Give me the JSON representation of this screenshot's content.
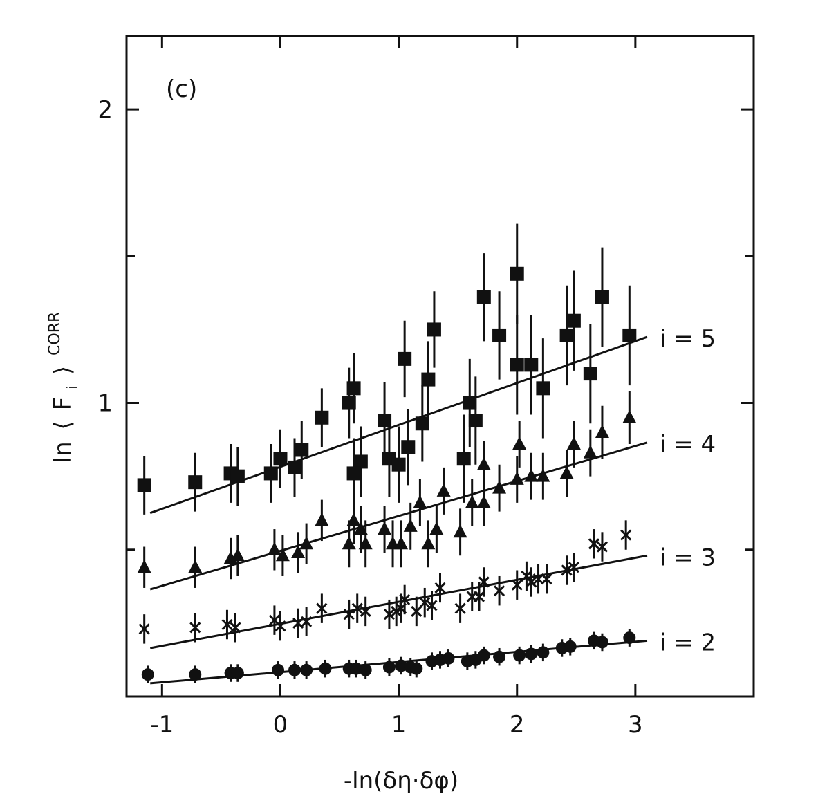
{
  "chart_data": {
    "type": "scatter",
    "panel_label": "(c)",
    "xlabel": "-ln(δη·δφ)",
    "ylabel": {
      "prefix": "ln",
      "open": "⟨",
      "base": "F",
      "sub": "i",
      "close": "⟩",
      "sup": "CORR"
    },
    "xlim": [
      -1.3,
      4.0
    ],
    "ylim": [
      0.0,
      2.25
    ],
    "x_ticks": [
      -1,
      0,
      1,
      2,
      3
    ],
    "x_tick_labels": [
      "-1",
      "0",
      "1",
      "2",
      "3"
    ],
    "y_ticks": [
      1,
      2
    ],
    "y_tick_labels": [
      "1",
      "2"
    ],
    "y_minor_ticks": [
      0.5,
      1.5
    ],
    "grid": false,
    "legend": "none",
    "series": [
      {
        "name": "i = 2",
        "marker": "circle",
        "fit": {
          "x": [
            -1.1,
            3.1
          ],
          "y": [
            0.045,
            0.19
          ]
        },
        "points": [
          [
            -1.12,
            0.075,
            0.03
          ],
          [
            -0.72,
            0.075,
            0.03
          ],
          [
            -0.42,
            0.08,
            0.03
          ],
          [
            -0.36,
            0.08,
            0.03
          ],
          [
            -0.02,
            0.09,
            0.03
          ],
          [
            0.12,
            0.09,
            0.03
          ],
          [
            0.22,
            0.09,
            0.03
          ],
          [
            0.38,
            0.095,
            0.03
          ],
          [
            0.58,
            0.095,
            0.03
          ],
          [
            0.64,
            0.095,
            0.03
          ],
          [
            0.72,
            0.09,
            0.03
          ],
          [
            0.92,
            0.1,
            0.03
          ],
          [
            1.02,
            0.105,
            0.03
          ],
          [
            1.1,
            0.1,
            0.03
          ],
          [
            1.15,
            0.095,
            0.03
          ],
          [
            1.28,
            0.12,
            0.03
          ],
          [
            1.35,
            0.125,
            0.03
          ],
          [
            1.42,
            0.13,
            0.03
          ],
          [
            1.58,
            0.12,
            0.03
          ],
          [
            1.65,
            0.125,
            0.03
          ],
          [
            1.72,
            0.14,
            0.03
          ],
          [
            1.85,
            0.135,
            0.03
          ],
          [
            2.02,
            0.14,
            0.03
          ],
          [
            2.12,
            0.145,
            0.03
          ],
          [
            2.22,
            0.15,
            0.03
          ],
          [
            2.38,
            0.165,
            0.03
          ],
          [
            2.45,
            0.17,
            0.03
          ],
          [
            2.65,
            0.19,
            0.03
          ],
          [
            2.72,
            0.185,
            0.03
          ],
          [
            2.95,
            0.2,
            0.03
          ]
        ]
      },
      {
        "name": "i = 3",
        "marker": "x",
        "fit": {
          "x": [
            -1.1,
            3.1
          ],
          "y": [
            0.165,
            0.48
          ]
        },
        "points": [
          [
            -1.15,
            0.23,
            0.05
          ],
          [
            -0.72,
            0.235,
            0.05
          ],
          [
            -0.45,
            0.245,
            0.05
          ],
          [
            -0.38,
            0.235,
            0.05
          ],
          [
            -0.05,
            0.26,
            0.05
          ],
          [
            0.0,
            0.24,
            0.05
          ],
          [
            0.15,
            0.25,
            0.05
          ],
          [
            0.22,
            0.255,
            0.05
          ],
          [
            0.35,
            0.3,
            0.05
          ],
          [
            0.58,
            0.28,
            0.05
          ],
          [
            0.65,
            0.3,
            0.05
          ],
          [
            0.72,
            0.29,
            0.05
          ],
          [
            0.92,
            0.28,
            0.05
          ],
          [
            0.98,
            0.29,
            0.05
          ],
          [
            1.02,
            0.3,
            0.05
          ],
          [
            1.05,
            0.33,
            0.05
          ],
          [
            1.15,
            0.29,
            0.05
          ],
          [
            1.22,
            0.32,
            0.05
          ],
          [
            1.28,
            0.31,
            0.05
          ],
          [
            1.35,
            0.37,
            0.05
          ],
          [
            1.52,
            0.3,
            0.05
          ],
          [
            1.62,
            0.34,
            0.05
          ],
          [
            1.68,
            0.34,
            0.05
          ],
          [
            1.72,
            0.39,
            0.05
          ],
          [
            1.85,
            0.36,
            0.05
          ],
          [
            2.0,
            0.38,
            0.05
          ],
          [
            2.08,
            0.41,
            0.05
          ],
          [
            2.12,
            0.39,
            0.05
          ],
          [
            2.18,
            0.4,
            0.05
          ],
          [
            2.25,
            0.4,
            0.05
          ],
          [
            2.42,
            0.43,
            0.05
          ],
          [
            2.48,
            0.44,
            0.05
          ],
          [
            2.65,
            0.52,
            0.05
          ],
          [
            2.72,
            0.51,
            0.05
          ],
          [
            2.92,
            0.55,
            0.05
          ]
        ]
      },
      {
        "name": "i = 4",
        "marker": "triangle",
        "fit": {
          "x": [
            -1.1,
            3.1
          ],
          "y": [
            0.365,
            0.865
          ]
        },
        "points": [
          [
            -1.15,
            0.44,
            0.07
          ],
          [
            -0.72,
            0.44,
            0.07
          ],
          [
            -0.42,
            0.47,
            0.07
          ],
          [
            -0.36,
            0.48,
            0.07
          ],
          [
            -0.05,
            0.5,
            0.07
          ],
          [
            0.02,
            0.48,
            0.07
          ],
          [
            0.15,
            0.49,
            0.07
          ],
          [
            0.22,
            0.52,
            0.07
          ],
          [
            0.35,
            0.6,
            0.07
          ],
          [
            0.58,
            0.52,
            0.08
          ],
          [
            0.62,
            0.6,
            0.08
          ],
          [
            0.68,
            0.57,
            0.08
          ],
          [
            0.72,
            0.52,
            0.08
          ],
          [
            0.88,
            0.57,
            0.08
          ],
          [
            0.95,
            0.52,
            0.08
          ],
          [
            1.02,
            0.52,
            0.08
          ],
          [
            1.1,
            0.58,
            0.08
          ],
          [
            1.18,
            0.66,
            0.08
          ],
          [
            1.25,
            0.52,
            0.08
          ],
          [
            1.32,
            0.57,
            0.08
          ],
          [
            1.38,
            0.7,
            0.08
          ],
          [
            1.52,
            0.56,
            0.08
          ],
          [
            1.62,
            0.66,
            0.08
          ],
          [
            1.72,
            0.66,
            0.08
          ],
          [
            1.72,
            0.79,
            0.08
          ],
          [
            1.85,
            0.71,
            0.08
          ],
          [
            2.0,
            0.74,
            0.08
          ],
          [
            2.02,
            0.86,
            0.08
          ],
          [
            2.12,
            0.75,
            0.08
          ],
          [
            2.22,
            0.75,
            0.08
          ],
          [
            2.42,
            0.76,
            0.08
          ],
          [
            2.48,
            0.86,
            0.08
          ],
          [
            2.62,
            0.83,
            0.08
          ],
          [
            2.72,
            0.9,
            0.09
          ],
          [
            2.95,
            0.95,
            0.09
          ]
        ]
      },
      {
        "name": "i = 5",
        "marker": "square",
        "fit": {
          "x": [
            -1.1,
            3.1
          ],
          "y": [
            0.625,
            1.225
          ]
        },
        "points": [
          [
            -1.15,
            0.72,
            0.1
          ],
          [
            -0.72,
            0.73,
            0.1
          ],
          [
            -0.42,
            0.76,
            0.1
          ],
          [
            -0.36,
            0.75,
            0.1
          ],
          [
            -0.08,
            0.76,
            0.1
          ],
          [
            0.0,
            0.81,
            0.1
          ],
          [
            0.12,
            0.78,
            0.1
          ],
          [
            0.18,
            0.84,
            0.1
          ],
          [
            0.35,
            0.95,
            0.1
          ],
          [
            0.58,
            1.0,
            0.12
          ],
          [
            0.62,
            1.05,
            0.12
          ],
          [
            0.68,
            0.8,
            0.12
          ],
          [
            0.62,
            0.76,
            0.12
          ],
          [
            0.88,
            0.94,
            0.13
          ],
          [
            0.92,
            0.81,
            0.13
          ],
          [
            1.0,
            0.79,
            0.13
          ],
          [
            1.05,
            1.15,
            0.13
          ],
          [
            1.08,
            0.85,
            0.13
          ],
          [
            1.2,
            0.93,
            0.13
          ],
          [
            1.25,
            1.08,
            0.13
          ],
          [
            1.3,
            1.25,
            0.13
          ],
          [
            1.55,
            0.81,
            0.15
          ],
          [
            1.6,
            1.0,
            0.15
          ],
          [
            1.65,
            0.94,
            0.15
          ],
          [
            1.72,
            1.36,
            0.15
          ],
          [
            1.85,
            1.23,
            0.15
          ],
          [
            2.0,
            1.13,
            0.17
          ],
          [
            2.0,
            1.44,
            0.17
          ],
          [
            2.12,
            1.13,
            0.17
          ],
          [
            2.22,
            1.05,
            0.17
          ],
          [
            2.42,
            1.23,
            0.17
          ],
          [
            2.48,
            1.28,
            0.17
          ],
          [
            2.62,
            1.1,
            0.17
          ],
          [
            2.72,
            1.36,
            0.17
          ],
          [
            2.95,
            1.23,
            0.17
          ]
        ]
      }
    ]
  }
}
